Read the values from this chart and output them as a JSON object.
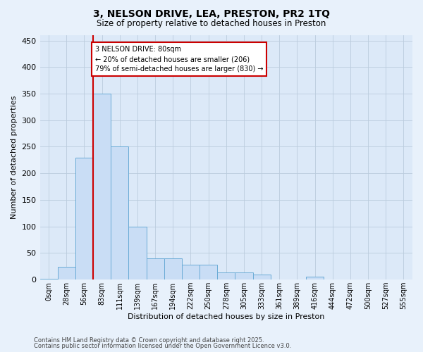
{
  "title_line1": "3, NELSON DRIVE, LEA, PRESTON, PR2 1TQ",
  "title_line2": "Size of property relative to detached houses in Preston",
  "xlabel": "Distribution of detached houses by size in Preston",
  "ylabel": "Number of detached properties",
  "categories": [
    "0sqm",
    "28sqm",
    "56sqm",
    "83sqm",
    "111sqm",
    "139sqm",
    "167sqm",
    "194sqm",
    "222sqm",
    "250sqm",
    "278sqm",
    "305sqm",
    "333sqm",
    "361sqm",
    "389sqm",
    "416sqm",
    "444sqm",
    "472sqm",
    "500sqm",
    "527sqm",
    "555sqm"
  ],
  "bar_values": [
    2,
    24,
    230,
    350,
    250,
    100,
    40,
    40,
    28,
    28,
    13,
    13,
    9,
    0,
    0,
    5,
    0,
    0,
    0,
    0,
    0
  ],
  "bar_color": "#c9ddf5",
  "bar_edge_color": "#6aabd6",
  "grid_color": "#bbccdd",
  "ylim": [
    0,
    460
  ],
  "yticks": [
    0,
    50,
    100,
    150,
    200,
    250,
    300,
    350,
    400,
    450
  ],
  "annotation_text": "3 NELSON DRIVE: 80sqm\n← 20% of detached houses are smaller (206)\n79% of semi-detached houses are larger (830) →",
  "annotation_box_color": "#ffffff",
  "annotation_box_edge": "#cc0000",
  "property_line_color": "#cc0000",
  "footer_line1": "Contains HM Land Registry data © Crown copyright and database right 2025.",
  "footer_line2": "Contains public sector information licensed under the Open Government Licence v3.0.",
  "background_color": "#dce9f8",
  "fig_background_color": "#e8f1fb"
}
